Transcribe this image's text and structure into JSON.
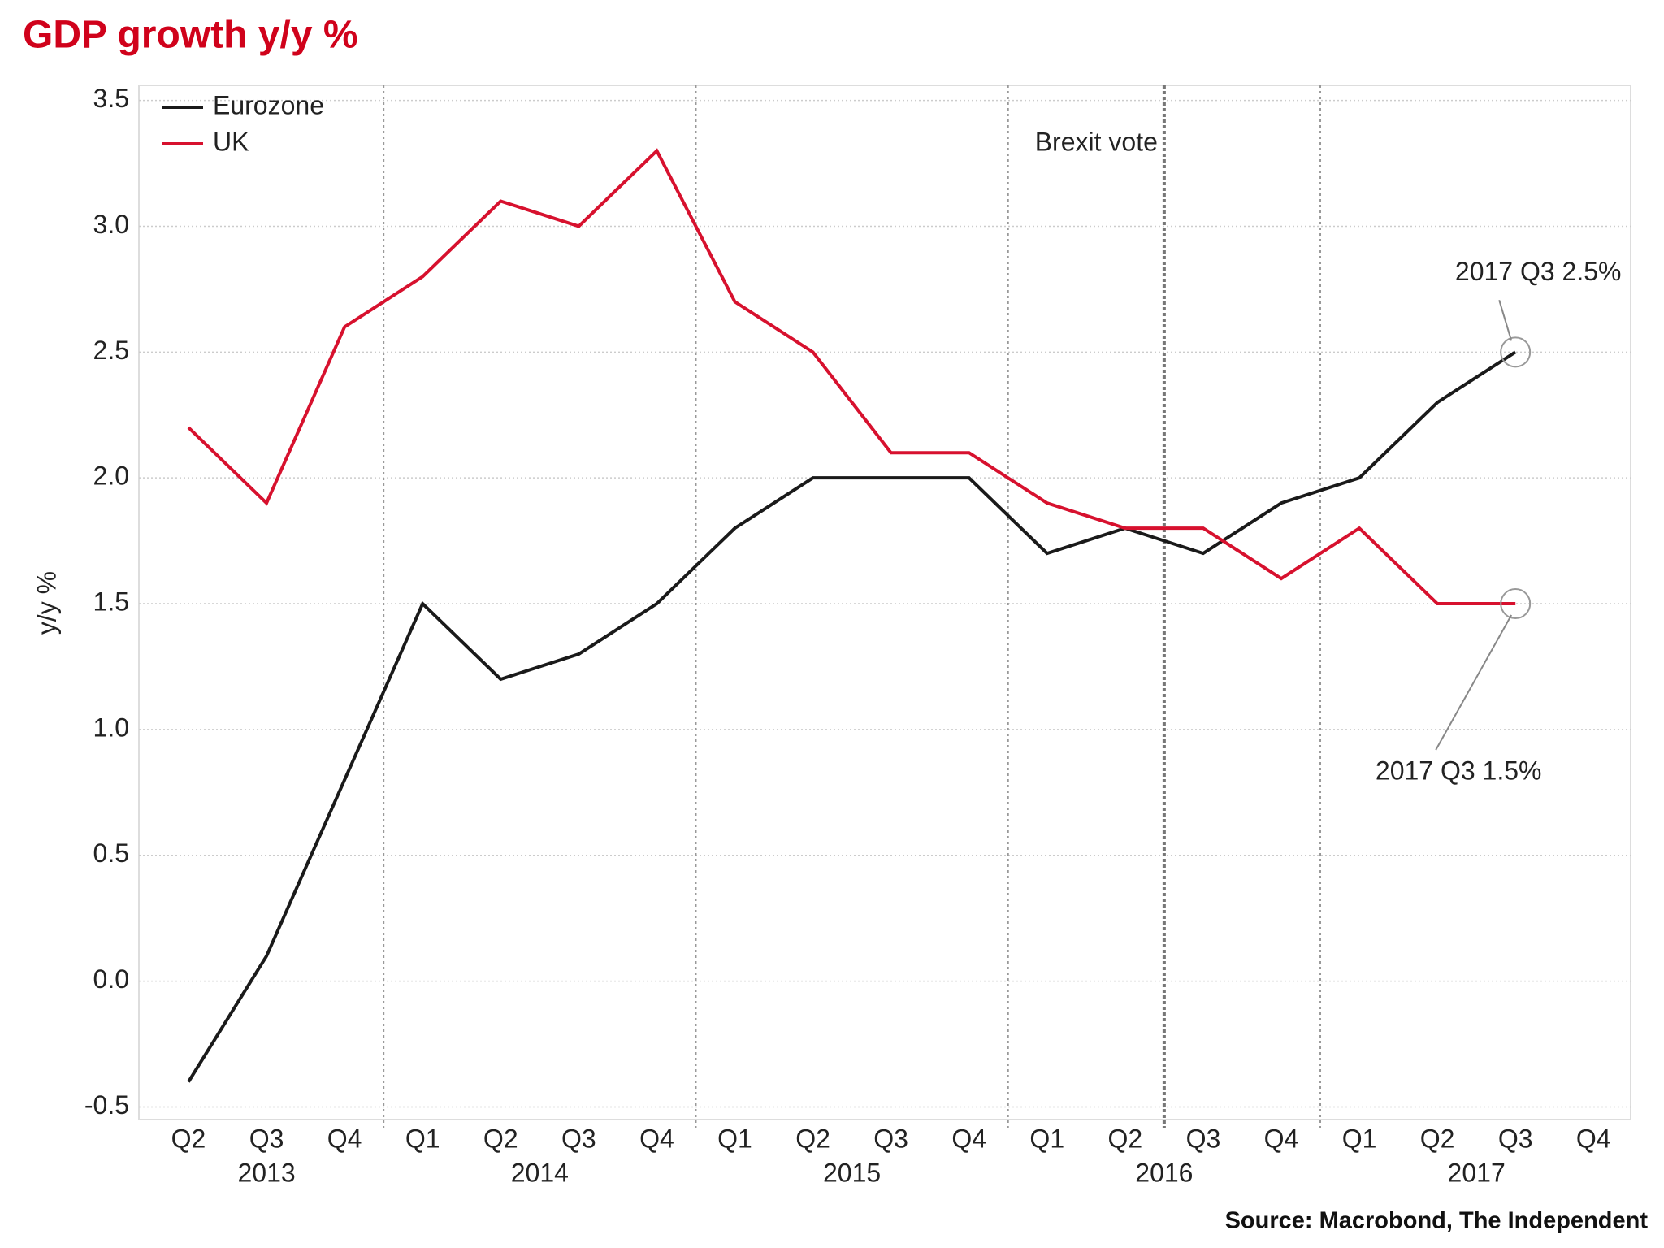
{
  "chart_data": {
    "type": "line",
    "title": "GDP growth y/y %",
    "ylabel": "y/y %",
    "source": "Source: Macrobond, The Independent",
    "categories": [
      "Q2",
      "Q3",
      "Q4",
      "Q1",
      "Q2",
      "Q3",
      "Q4",
      "Q1",
      "Q2",
      "Q3",
      "Q4",
      "Q1",
      "Q2",
      "Q3",
      "Q4",
      "Q1",
      "Q2",
      "Q3",
      "Q4"
    ],
    "years": [
      {
        "label": "2013",
        "from": 0,
        "to": 2
      },
      {
        "label": "2014",
        "from": 3,
        "to": 6
      },
      {
        "label": "2015",
        "from": 7,
        "to": 10
      },
      {
        "label": "2016",
        "from": 11,
        "to": 14
      },
      {
        "label": "2017",
        "from": 15,
        "to": 18
      }
    ],
    "series": [
      {
        "name": "Eurozone",
        "color": "#1a1a1a",
        "values": [
          -0.4,
          0.1,
          0.8,
          1.5,
          1.2,
          1.3,
          1.5,
          1.8,
          2.0,
          2.0,
          2.0,
          1.7,
          1.8,
          1.7,
          1.9,
          2.0,
          2.3,
          2.5,
          null
        ]
      },
      {
        "name": "UK",
        "color": "#d7112e",
        "values": [
          2.2,
          1.9,
          2.6,
          2.8,
          3.1,
          3.0,
          3.3,
          2.7,
          2.5,
          2.1,
          2.1,
          1.9,
          1.8,
          1.8,
          1.6,
          1.8,
          1.5,
          1.5,
          null
        ]
      }
    ],
    "ylim": [
      -0.55,
      3.56
    ],
    "yticks": [
      {
        "value": -0.5,
        "label": "-0.5"
      },
      {
        "value": 0,
        "label": "0.0"
      },
      {
        "value": 0.5,
        "label": "0.5"
      },
      {
        "value": 1,
        "label": "1.0"
      },
      {
        "value": 1.5,
        "label": "1.5"
      },
      {
        "value": 2,
        "label": "2.0"
      },
      {
        "value": 2.5,
        "label": "2.5"
      },
      {
        "value": 3,
        "label": "3.0"
      },
      {
        "value": 3.5,
        "label": "3.5"
      }
    ],
    "grid": true,
    "legend": "top-left",
    "event": {
      "label": "Brexit vote",
      "after_index": 12
    },
    "callouts": [
      {
        "text": "2017 Q3 2.5%",
        "series": 0,
        "index": 17
      },
      {
        "text": "2017 Q3 1.5%",
        "series": 1,
        "index": 17
      }
    ]
  }
}
